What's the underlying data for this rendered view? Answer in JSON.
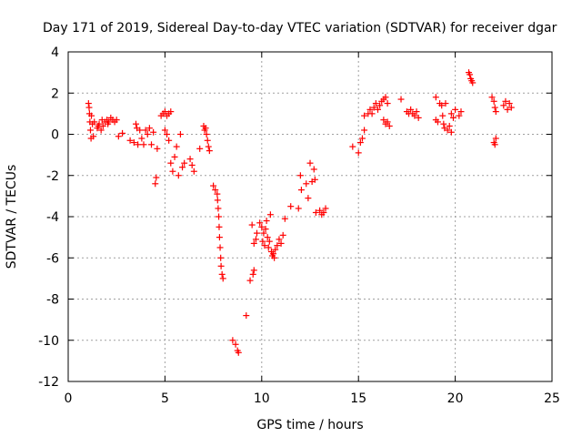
{
  "chart_data": {
    "type": "scatter",
    "title": "Day 171 of 2019, Sidereal Day-to-day VTEC variation (SDTVAR) for receiver dgar",
    "xlabel": "GPS time / hours",
    "ylabel": "SDTVAR / TECUs",
    "xlim": [
      0,
      25
    ],
    "ylim": [
      -12,
      4
    ],
    "xticks": [
      0,
      5,
      10,
      15,
      20,
      25
    ],
    "yticks": [
      -12,
      -10,
      -8,
      -6,
      -4,
      -2,
      0,
      2,
      4
    ],
    "grid": true,
    "marker": "+",
    "color": "#ff0000",
    "series": [
      {
        "name": "SDTVAR",
        "points": [
          [
            1.05,
            1.5
          ],
          [
            1.08,
            1.3
          ],
          [
            1.1,
            1.0
          ],
          [
            1.12,
            0.6
          ],
          [
            1.15,
            0.2
          ],
          [
            1.18,
            -0.2
          ],
          [
            1.2,
            0.9
          ],
          [
            1.25,
            0.5
          ],
          [
            1.3,
            -0.1
          ],
          [
            1.35,
            0.6
          ],
          [
            1.5,
            0.3
          ],
          [
            1.6,
            0.5
          ],
          [
            1.7,
            0.2
          ],
          [
            1.8,
            0.4
          ],
          [
            1.9,
            0.6
          ],
          [
            2.0,
            0.7
          ],
          [
            2.1,
            0.6
          ],
          [
            2.2,
            0.8
          ],
          [
            2.3,
            0.7
          ],
          [
            2.4,
            0.6
          ],
          [
            2.5,
            0.7
          ],
          [
            1.75,
            0.7
          ],
          [
            2.05,
            0.5
          ],
          [
            1.55,
            0.4
          ],
          [
            2.6,
            -0.1
          ],
          [
            2.8,
            0.05
          ],
          [
            3.2,
            -0.3
          ],
          [
            3.4,
            -0.4
          ],
          [
            3.5,
            0.5
          ],
          [
            3.55,
            0.3
          ],
          [
            3.6,
            -0.5
          ],
          [
            3.7,
            0.2
          ],
          [
            3.8,
            -0.2
          ],
          [
            3.9,
            -0.5
          ],
          [
            4.0,
            0.2
          ],
          [
            4.1,
            0.0
          ],
          [
            4.2,
            0.3
          ],
          [
            4.3,
            -0.5
          ],
          [
            4.4,
            0.1
          ],
          [
            4.5,
            -2.4
          ],
          [
            4.55,
            -2.1
          ],
          [
            4.6,
            -0.7
          ],
          [
            4.8,
            0.9
          ],
          [
            4.9,
            1.0
          ],
          [
            5.0,
            1.1
          ],
          [
            5.1,
            0.9
          ],
          [
            5.2,
            1.0
          ],
          [
            5.3,
            1.1
          ],
          [
            5.0,
            0.2
          ],
          [
            5.1,
            0.0
          ],
          [
            5.2,
            -0.3
          ],
          [
            5.3,
            -1.4
          ],
          [
            5.4,
            -1.8
          ],
          [
            5.5,
            -1.1
          ],
          [
            5.6,
            -0.6
          ],
          [
            5.7,
            -2.0
          ],
          [
            5.8,
            0.0
          ],
          [
            5.9,
            -1.6
          ],
          [
            6.0,
            -1.4
          ],
          [
            6.3,
            -1.2
          ],
          [
            6.4,
            -1.5
          ],
          [
            6.5,
            -1.8
          ],
          [
            6.8,
            -0.7
          ],
          [
            7.0,
            0.4
          ],
          [
            7.05,
            0.2
          ],
          [
            7.1,
            0.3
          ],
          [
            7.15,
            0.0
          ],
          [
            7.2,
            -0.3
          ],
          [
            7.25,
            -0.6
          ],
          [
            7.3,
            -0.8
          ],
          [
            7.5,
            -2.5
          ],
          [
            7.6,
            -2.7
          ],
          [
            7.7,
            -2.9
          ],
          [
            7.72,
            -3.2
          ],
          [
            7.75,
            -3.6
          ],
          [
            7.78,
            -4.0
          ],
          [
            7.8,
            -4.5
          ],
          [
            7.82,
            -5.0
          ],
          [
            7.85,
            -5.5
          ],
          [
            7.88,
            -6.0
          ],
          [
            7.9,
            -6.4
          ],
          [
            7.95,
            -6.8
          ],
          [
            8.0,
            -7.0
          ],
          [
            8.5,
            -10.0
          ],
          [
            8.65,
            -10.2
          ],
          [
            8.75,
            -10.5
          ],
          [
            8.8,
            -10.6
          ],
          [
            9.2,
            -8.8
          ],
          [
            9.4,
            -7.1
          ],
          [
            9.55,
            -6.8
          ],
          [
            9.6,
            -6.6
          ],
          [
            9.6,
            -5.3
          ],
          [
            9.7,
            -5.1
          ],
          [
            9.75,
            -4.8
          ],
          [
            9.9,
            -4.3
          ],
          [
            10.0,
            -4.5
          ],
          [
            10.05,
            -5.2
          ],
          [
            10.1,
            -4.8
          ],
          [
            10.2,
            -4.6
          ],
          [
            10.3,
            -5.0
          ],
          [
            10.35,
            -5.5
          ],
          [
            10.4,
            -5.2
          ],
          [
            10.5,
            -5.7
          ],
          [
            10.55,
            -5.9
          ],
          [
            10.6,
            -5.8
          ],
          [
            10.7,
            -5.6
          ],
          [
            10.8,
            -5.4
          ],
          [
            10.9,
            -5.1
          ],
          [
            11.0,
            -5.3
          ],
          [
            11.1,
            -4.9
          ],
          [
            10.45,
            -3.9
          ],
          [
            10.25,
            -4.2
          ],
          [
            9.5,
            -4.4
          ],
          [
            10.15,
            -5.4
          ],
          [
            10.65,
            -6.0
          ],
          [
            11.2,
            -4.1
          ],
          [
            11.5,
            -3.5
          ],
          [
            11.9,
            -3.6
          ],
          [
            12.0,
            -2.0
          ],
          [
            12.05,
            -2.7
          ],
          [
            12.3,
            -2.4
          ],
          [
            12.4,
            -3.1
          ],
          [
            12.5,
            -1.4
          ],
          [
            12.6,
            -2.3
          ],
          [
            12.7,
            -1.7
          ],
          [
            12.8,
            -3.8
          ],
          [
            12.75,
            -2.2
          ],
          [
            13.0,
            -3.7
          ],
          [
            13.1,
            -3.9
          ],
          [
            13.2,
            -3.8
          ],
          [
            13.3,
            -3.6
          ],
          [
            14.7,
            -0.6
          ],
          [
            15.0,
            -0.9
          ],
          [
            15.1,
            -0.4
          ],
          [
            15.2,
            -0.2
          ],
          [
            15.3,
            0.2
          ],
          [
            15.3,
            0.9
          ],
          [
            15.5,
            1.0
          ],
          [
            15.6,
            1.2
          ],
          [
            15.7,
            1.0
          ],
          [
            15.8,
            1.3
          ],
          [
            15.9,
            1.5
          ],
          [
            16.0,
            1.2
          ],
          [
            16.1,
            1.4
          ],
          [
            16.2,
            1.6
          ],
          [
            16.3,
            1.7
          ],
          [
            16.4,
            1.8
          ],
          [
            16.5,
            1.5
          ],
          [
            16.3,
            0.7
          ],
          [
            16.4,
            0.5
          ],
          [
            16.6,
            0.4
          ],
          [
            16.5,
            0.6
          ],
          [
            17.2,
            1.7
          ],
          [
            17.5,
            1.1
          ],
          [
            17.6,
            1.0
          ],
          [
            17.7,
            1.2
          ],
          [
            17.8,
            1.0
          ],
          [
            17.9,
            0.9
          ],
          [
            18.0,
            1.1
          ],
          [
            18.1,
            0.8
          ],
          [
            19.0,
            1.8
          ],
          [
            19.0,
            0.7
          ],
          [
            19.1,
            0.6
          ],
          [
            19.2,
            1.5
          ],
          [
            19.3,
            1.4
          ],
          [
            19.4,
            0.5
          ],
          [
            19.5,
            1.5
          ],
          [
            19.6,
            0.2
          ],
          [
            19.7,
            0.4
          ],
          [
            19.8,
            0.1
          ],
          [
            19.8,
            1.0
          ],
          [
            19.9,
            0.8
          ],
          [
            20.0,
            1.2
          ],
          [
            19.35,
            0.9
          ],
          [
            19.45,
            0.3
          ],
          [
            20.2,
            0.9
          ],
          [
            20.3,
            1.1
          ],
          [
            20.7,
            3.0
          ],
          [
            20.75,
            2.9
          ],
          [
            20.8,
            2.7
          ],
          [
            20.85,
            2.6
          ],
          [
            20.9,
            2.5
          ],
          [
            21.9,
            1.8
          ],
          [
            22.0,
            1.6
          ],
          [
            22.05,
            1.3
          ],
          [
            22.1,
            1.1
          ],
          [
            22.0,
            -0.4
          ],
          [
            22.05,
            -0.5
          ],
          [
            22.1,
            -0.2
          ],
          [
            22.5,
            1.4
          ],
          [
            22.6,
            1.6
          ],
          [
            22.7,
            1.2
          ],
          [
            22.8,
            1.5
          ],
          [
            22.9,
            1.3
          ]
        ]
      }
    ]
  }
}
